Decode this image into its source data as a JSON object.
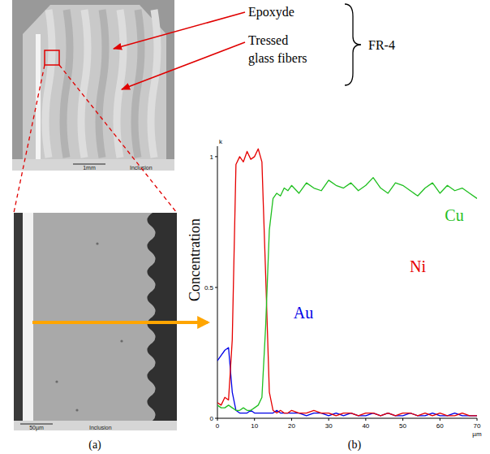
{
  "chart_data": {
    "type": "line",
    "label": "(b)",
    "y_label": "Concentration",
    "y_unit": "k",
    "x_unit": "µm",
    "x": [
      0,
      1,
      2,
      3,
      4,
      5,
      6,
      7,
      8,
      9,
      10,
      11,
      12,
      13,
      14,
      15,
      16,
      17,
      18,
      19,
      20,
      22,
      24,
      26,
      28,
      30,
      32,
      34,
      36,
      38,
      40,
      42,
      44,
      46,
      48,
      50,
      52,
      54,
      56,
      58,
      60,
      62,
      64,
      66,
      68,
      70
    ],
    "series": [
      {
        "name": "Au",
        "color": "#0000e6",
        "values": [
          0.22,
          0.24,
          0.26,
          0.27,
          0.1,
          0.03,
          0.02,
          0.02,
          0.02,
          0.03,
          0.02,
          0.02,
          0.02,
          0.02,
          0.02,
          0.02,
          0.03,
          0.02,
          0.02,
          0.02,
          0.02,
          0.02,
          0.01,
          0.02,
          0.02,
          0.01,
          0.02,
          0.01,
          0.02,
          0.01,
          0.01,
          0.02,
          0.01,
          0.02,
          0.01,
          0.01,
          0.02,
          0.01,
          0.01,
          0.02,
          0.01,
          0.01,
          0.02,
          0.01,
          0.01,
          0.01
        ]
      },
      {
        "name": "Ni",
        "color": "#e60000",
        "values": [
          0.06,
          0.05,
          0.08,
          0.07,
          0.3,
          0.97,
          1.0,
          0.98,
          1.02,
          0.99,
          1.0,
          1.03,
          0.98,
          0.55,
          0.1,
          0.03,
          0.02,
          0.03,
          0.02,
          0.02,
          0.03,
          0.02,
          0.02,
          0.03,
          0.02,
          0.02,
          0.01,
          0.02,
          0.02,
          0.01,
          0.02,
          0.02,
          0.01,
          0.02,
          0.01,
          0.02,
          0.02,
          0.01,
          0.02,
          0.01,
          0.02,
          0.01,
          0.01,
          0.02,
          0.01,
          0.01
        ]
      },
      {
        "name": "Cu",
        "color": "#1fbf1f",
        "values": [
          0.05,
          0.04,
          0.04,
          0.05,
          0.04,
          0.03,
          0.03,
          0.04,
          0.03,
          0.03,
          0.04,
          0.05,
          0.08,
          0.35,
          0.72,
          0.84,
          0.86,
          0.85,
          0.88,
          0.87,
          0.89,
          0.86,
          0.9,
          0.88,
          0.87,
          0.91,
          0.89,
          0.88,
          0.9,
          0.87,
          0.89,
          0.92,
          0.88,
          0.86,
          0.9,
          0.89,
          0.87,
          0.85,
          0.88,
          0.9,
          0.86,
          0.89,
          0.87,
          0.88,
          0.86,
          0.84
        ]
      }
    ],
    "xlim": [
      0,
      70
    ],
    "xticks": [
      0,
      10,
      20,
      30,
      40,
      50,
      60,
      70
    ],
    "ylim": [
      0,
      1.04
    ],
    "yticks": [
      0,
      0.5,
      1
    ]
  },
  "figure": {
    "panel_a": {
      "label": "(a)",
      "overview": {
        "scale": "1mm",
        "caption": "Inclusion"
      },
      "detail": {
        "scale": "50µm",
        "caption": "Inclusion"
      }
    },
    "annotations": {
      "epoxy": "Epoxyde",
      "fibers": "Tressed glass fibers",
      "group": "FR-4"
    }
  }
}
